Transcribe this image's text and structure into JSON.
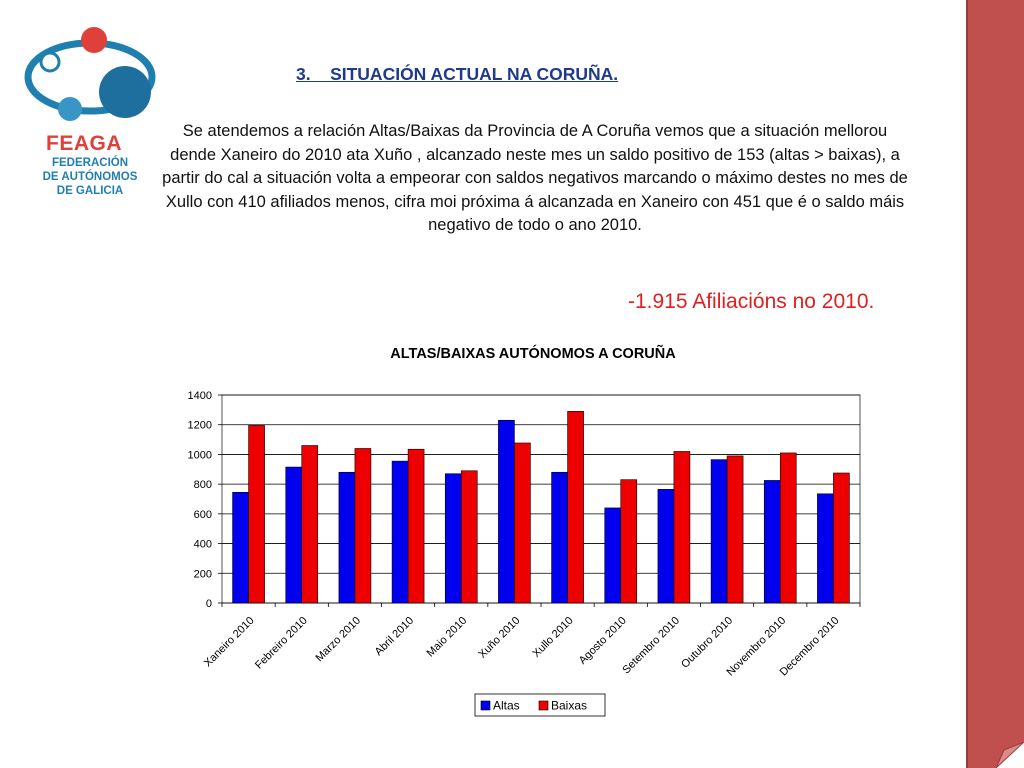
{
  "logo": {
    "name": "FEAGA",
    "subtitle_lines": [
      "FEDERACIÓN",
      "DE AUTÓNOMOS",
      "DE GALICIA"
    ],
    "colors": {
      "blue": "#1f7fae",
      "red": "#e0403a"
    }
  },
  "heading": {
    "number": "3.",
    "text": "SITUACIÓN ACTUAL NA CORUÑA."
  },
  "paragraph": "Se atendemos a relación Altas/Baixas da Provincia de A Coruña vemos que a situación mellorou dende Xaneiro  do 2010 ata Xuño , alcanzado neste mes un saldo positivo  de 153 (altas > baixas), a partir do cal a situación  volta a empeorar con saldos negativos marcando o máximo destes no mes de Xullo  con 410 afiliados menos, cifra moi próxima á alcanzada en Xaneiro  con 451 que é o saldo máis negativo de todo o ano 2010.",
  "highlight": "-1.915 Afiliacións no 2010.",
  "sidebar_color": "#c0504d",
  "chart_data": {
    "type": "bar",
    "title": "ALTAS/BAIXAS AUTÓNOMOS A CORUÑA",
    "categories": [
      "Xaneiro 2010",
      "Febreiro 2010",
      "Marzo 2010",
      "Abril 2010",
      "Maio 2010",
      "Xuño 2010",
      "Xullo 2010",
      "Agosto 2010",
      "Setembro 2010",
      "Outubro 2010",
      "Novembro 2010",
      "Decembro 2010"
    ],
    "series": [
      {
        "name": "Altas",
        "color": "#0000ee",
        "values": [
          745,
          915,
          880,
          955,
          870,
          1230,
          880,
          640,
          765,
          965,
          825,
          735
        ]
      },
      {
        "name": "Baixas",
        "color": "#ee0000",
        "values": [
          1195,
          1060,
          1040,
          1035,
          890,
          1077,
          1290,
          830,
          1020,
          990,
          1010,
          875
        ]
      }
    ],
    "ylim": [
      0,
      1400
    ],
    "yticks": [
      0,
      200,
      400,
      600,
      800,
      1000,
      1200,
      1400
    ],
    "grid": true,
    "legend_position": "bottom"
  }
}
